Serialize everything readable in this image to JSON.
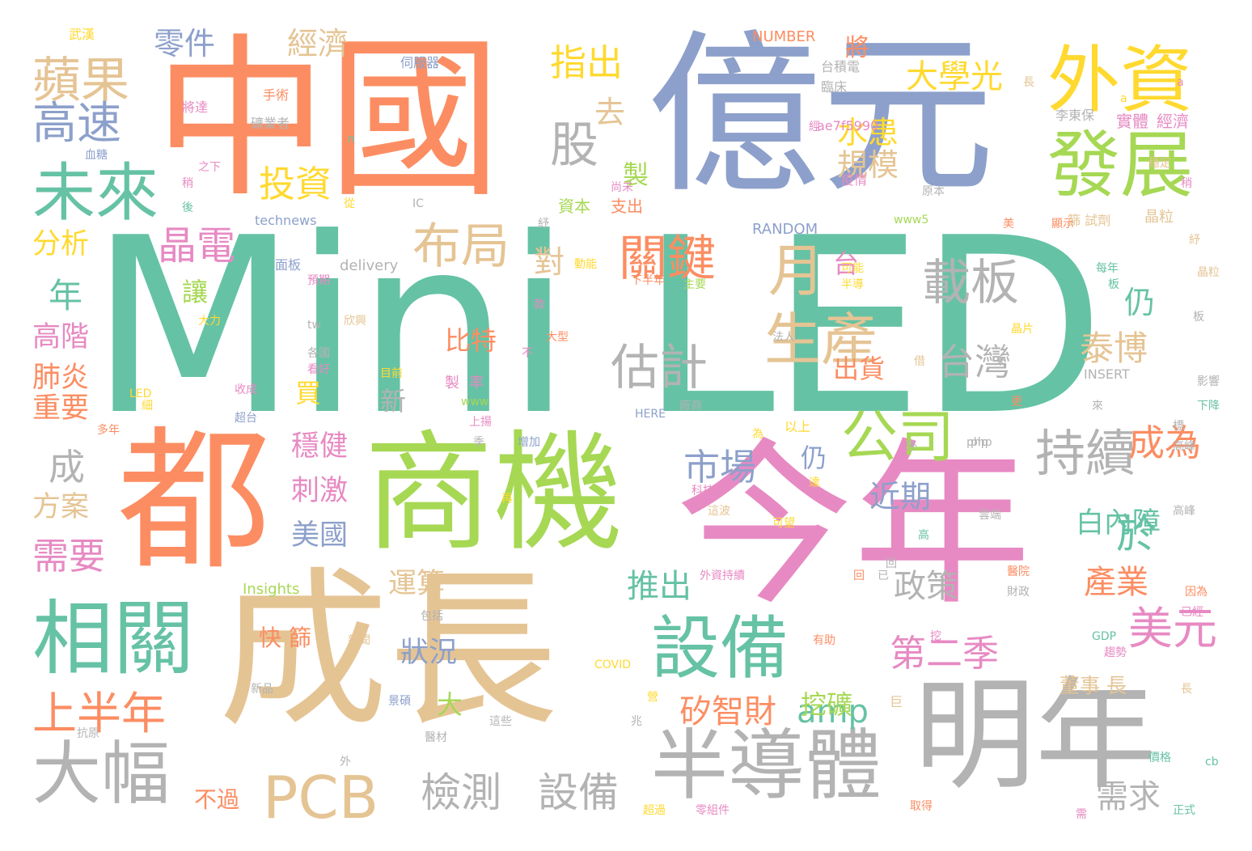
{
  "words": {
    "w1": "Mini LED",
    "w2": "中國",
    "w3": "億元",
    "w4": "成長",
    "w5": "今年",
    "w6": "商機",
    "w7": "都",
    "w8": "明年",
    "w9": "半導體",
    "w10": "外資",
    "w11": "發展",
    "w12": "相關",
    "w13": "未來",
    "w14": "設備",
    "w15": "大幅",
    "w16": "PCB",
    "w17": "公司",
    "w18": "持續",
    "w19": "蘋果",
    "w20": "高速",
    "w21": "美元",
    "w22": "股",
    "w23": "月",
    "w24": "生產",
    "w25": "估計",
    "w26": "布局",
    "w27": "載板",
    "w28": "台灣",
    "w29": "關鍵",
    "w30": "晶電",
    "w31": "投資",
    "w32": "檢測",
    "w33": "設備",
    "w34": "市場",
    "w35": "大學光",
    "w36": "成為",
    "w37": "於",
    "w38": "第二季",
    "w39": "指出",
    "w40": "上半年",
    "w41": "需要",
    "w42": "矽智財",
    "w43": "amp",
    "w44": "推出",
    "w45": "政策",
    "w46": "產業",
    "w47": "白內障",
    "w48": "近期",
    "w49": "泰博",
    "w50": "水患",
    "w51": "規模",
    "w52": "需求",
    "w53": "零件",
    "w54": "經濟",
    "w55": "比特",
    "w56": "穩健",
    "w57": "刺激",
    "w58": "美國",
    "w59": "運算",
    "w60": "狀況",
    "w61": "方案",
    "w62": "分析",
    "w63": "高階",
    "w64": "肺炎",
    "w65": "重要",
    "w66": "成",
    "w67": "年",
    "w68": "仍",
    "w69": "新",
    "w70": "挖礦",
    "w71": "董事 長",
    "w72": "不過",
    "w73": "",
    "w74": "快 篩",
    "w75": "對",
    "w76": "去",
    "w77": "台",
    "w78": "出貨",
    "w79": "買",
    "w80": "讓",
    "w81": "大",
    "w82": "製",
    "w83": "仍",
    "w84": "將",
    "s1": "NUMBER",
    "s2": "武漢",
    "s3": "伺服器",
    "s4": "台積電",
    "s5": "臨床",
    "s6": "ae7f5990",
    "s7": "李東保",
    "s8": "實體",
    "s9": "經濟",
    "s10": "a",
    "s11": "a",
    "s12": "穩定",
    "s13": "長",
    "s14": "手術",
    "s15": "礦業者",
    "s16": "將達",
    "s17": "n",
    "s18": "血糖",
    "s19": "之下",
    "s20": "稍",
    "s21": "後",
    "s22": "technews",
    "s23": "從",
    "s24": "IC",
    "s25": "資本",
    "s26": "支出",
    "s27": "紓",
    "s28": "尚未",
    "s29": "面板",
    "s30": "delivery",
    "s31": "預期",
    "s32": "動能",
    "s33": "下半年",
    "s34": "主要",
    "s35": "RANDOM",
    "s36": "經",
    "s37": "疫情",
    "s38": "www5",
    "s39": "原本",
    "s40": "美",
    "s41": "顯示",
    "s42": "篩 試劑",
    "s43": "晶粒",
    "s44": "紓",
    "s45": "可能",
    "s46": "半導",
    "s47": "每年",
    "s48": "板",
    "s49": "晶片",
    "s50": "板",
    "s51": "借",
    "s52": "INSERT",
    "s53": "影響",
    "s54": "下降",
    "s55": "更",
    "s56": "標",
    "s57": "高峰",
    "s58": "php",
    "s59": "高峰",
    "s60": "雲端",
    "s61": "高",
    "s62": "醫院",
    "s63": "財政",
    "s64": "因為",
    "s65": "已經",
    "s66": "GDP",
    "s67": "趨勢",
    "s68": "長",
    "s69": "價格",
    "s70": "cb",
    "s71": "正式",
    "s72": "需",
    "s73": "取得",
    "s74": "挖",
    "s75": "巨",
    "s76": "php",
    "s77": "以上",
    "s78": "可望",
    "s79": "外資持續",
    "s80": "回",
    "s81": "已",
    "s82": "有助",
    "s83": "科技",
    "s84": "這波",
    "s85": "為",
    "s86": "廠商",
    "s87": "HERE",
    "s88": "法人",
    "s89": "不",
    "s90": "大型",
    "s91": "款",
    "s92": "製",
    "s93": "率",
    "s94": "www",
    "s95": "上揚",
    "s96": "目前",
    "s97": "各國",
    "s98": "看好",
    "s99": "收成",
    "s100": "超台",
    "s101": "LED",
    "s102": "細",
    "s103": "tw",
    "s104": "欣興",
    "s105": "大力",
    "s106": "多年",
    "s107": "增加",
    "s108": "再",
    "s109": "季",
    "s110": "Insights",
    "s111": "包括",
    "s112": "新聞",
    "s113": "新品",
    "s114": "景碩",
    "s115": "醫材",
    "s116": "這些",
    "s117": "COVID",
    "s118": "兆",
    "s119": "營",
    "s120": "超過",
    "s121": "零組件",
    "s122": "外",
    "s123": "抗原",
    "s124": "來",
    "s125": "外",
    "s126": "達",
    "s127": "晶粒",
    "s128": "稍",
    "s129": "回",
    "s130": "來"
  }
}
